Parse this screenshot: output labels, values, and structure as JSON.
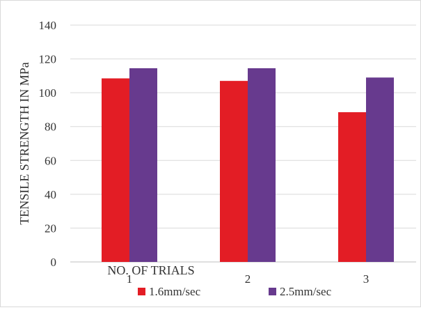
{
  "chart_data": {
    "type": "bar",
    "title": "",
    "ylabel": "TENSILE STRENGTH IN MPa",
    "xlabel": "NO. OF TRIALS",
    "categories": [
      "1",
      "2",
      "3"
    ],
    "ylim": [
      0,
      140
    ],
    "yticks": [
      0,
      20,
      40,
      60,
      80,
      100,
      120,
      140
    ],
    "grid": true,
    "legend": "bottom",
    "series": [
      {
        "name": "1.6mm/sec",
        "color": "#e31d25",
        "values": [
          108.5,
          107,
          88.5
        ]
      },
      {
        "name": "2.5mm/sec",
        "color": "#673a8e",
        "values": [
          114.5,
          114.5,
          109
        ]
      }
    ]
  }
}
